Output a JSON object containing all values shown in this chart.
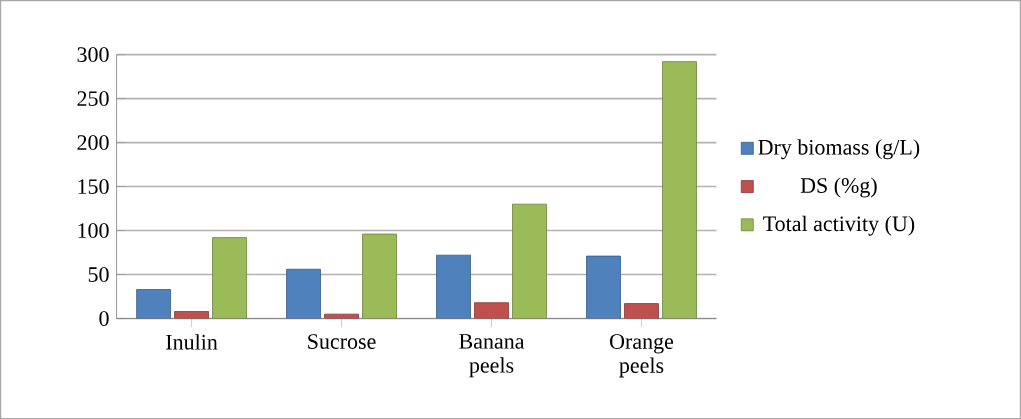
{
  "chart_data": {
    "type": "bar",
    "categories": [
      "Inulin",
      "Sucrose",
      "Banana peels",
      "Orange peels"
    ],
    "series": [
      {
        "name": "Dry biomass (g/L)",
        "color": "#4f81bd",
        "values": [
          33,
          56,
          72,
          71
        ]
      },
      {
        "name": "DS (%g)",
        "color": "#c0504d",
        "values": [
          8,
          5,
          18,
          17
        ]
      },
      {
        "name": "Total activity (U)",
        "color": "#9bbb59",
        "values": [
          92,
          96,
          130,
          292
        ]
      }
    ],
    "ylim": [
      0,
      300
    ],
    "yticks": [
      0,
      50,
      100,
      150,
      200,
      250,
      300
    ],
    "grid": "y",
    "legend": "right"
  }
}
